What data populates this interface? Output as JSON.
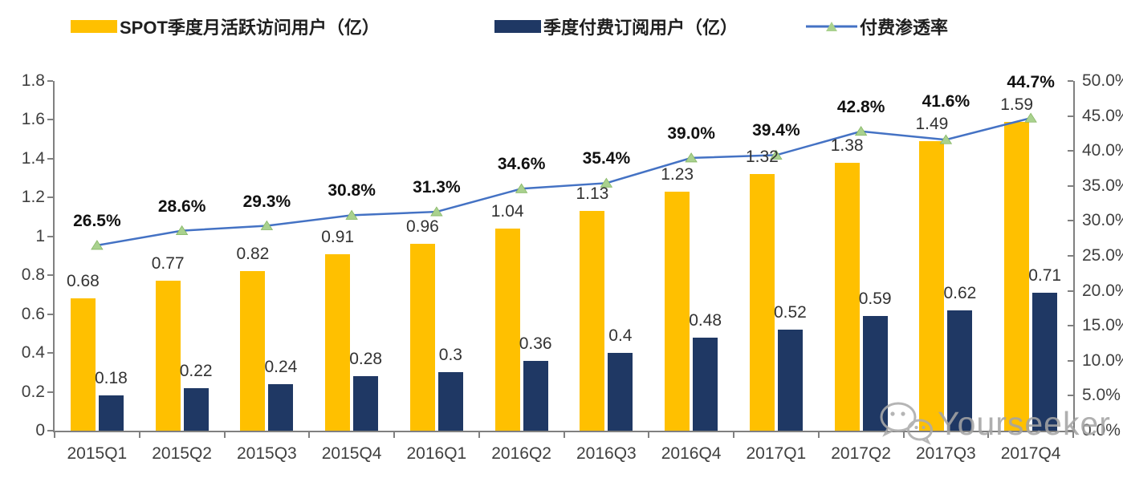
{
  "legend": [
    {
      "label": "SPOT季度月活跃访问用户（亿）",
      "swatch": "bar",
      "color": "#FFC000"
    },
    {
      "label": "季度付费订阅用户（亿）",
      "swatch": "bar",
      "color": "#1F3864"
    },
    {
      "label": "付费渗透率",
      "swatch": "line",
      "color": "#4472C4",
      "marker_color": "#A9D18E"
    }
  ],
  "watermark": {
    "icon": "wechat-icon",
    "text": "Yourseeker"
  },
  "colors": {
    "mau_bar": "#FFC000",
    "subs_bar": "#1F3864",
    "line": "#4472C4",
    "line_marker": "#A9D18E",
    "axis": "#808080",
    "text": "#404040"
  },
  "chart_data": {
    "type": "bar",
    "subtype": "grouped bars + line on secondary axis",
    "categories": [
      "2015Q1",
      "2015Q2",
      "2015Q3",
      "2015Q4",
      "2016Q1",
      "2016Q2",
      "2016Q3",
      "2016Q4",
      "2017Q1",
      "2017Q2",
      "2017Q3",
      "2017Q4"
    ],
    "series": [
      {
        "name": "SPOT季度月活跃访问用户（亿）",
        "type": "bar",
        "axis": "left",
        "color": "#FFC000",
        "values": [
          0.68,
          0.77,
          0.82,
          0.91,
          0.96,
          1.04,
          1.13,
          1.23,
          1.32,
          1.38,
          1.49,
          1.59
        ]
      },
      {
        "name": "季度付费订阅用户（亿）",
        "type": "bar",
        "axis": "left",
        "color": "#1F3864",
        "values": [
          0.18,
          0.22,
          0.24,
          0.28,
          0.3,
          0.36,
          0.4,
          0.48,
          0.52,
          0.59,
          0.62,
          0.71
        ]
      },
      {
        "name": "付费渗透率",
        "type": "line",
        "axis": "right",
        "color": "#4472C4",
        "marker": "triangle",
        "marker_color": "#A9D18E",
        "values": [
          26.5,
          28.6,
          29.3,
          30.8,
          31.3,
          34.6,
          35.4,
          39.0,
          39.4,
          42.8,
          41.6,
          44.7
        ]
      }
    ],
    "left_axis": {
      "min": 0,
      "max": 1.8,
      "step": 0.2,
      "tick_labels": [
        "0",
        "0.2",
        "0.4",
        "0.6",
        "0.8",
        "1",
        "1.2",
        "1.4",
        "1.6",
        "1.8"
      ]
    },
    "right_axis": {
      "min": 0,
      "max": 50,
      "step": 5,
      "tick_labels": [
        "0.0%",
        "5.0%",
        "10.0%",
        "15.0%",
        "20.0%",
        "25.0%",
        "30.0%",
        "35.0%",
        "40.0%",
        "45.0%",
        "50.0%"
      ]
    },
    "grid": false,
    "legend_position": "top",
    "data_labels": true
  }
}
